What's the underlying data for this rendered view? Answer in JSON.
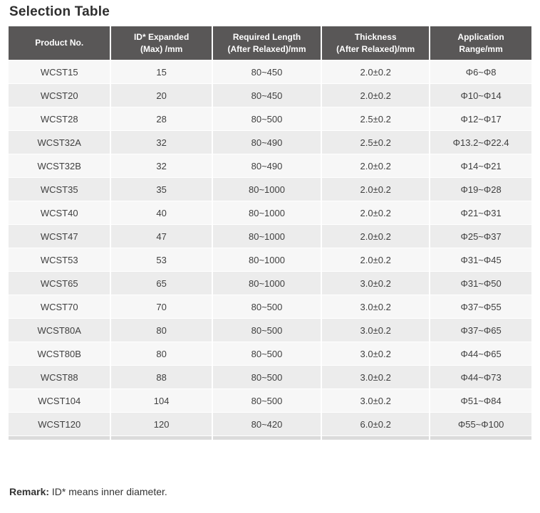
{
  "page": {
    "title": "Selection Table"
  },
  "table": {
    "columns": [
      {
        "key": "product-no",
        "label": "Product No."
      },
      {
        "key": "id-expanded",
        "label": "ID* Expanded\n(Max) /mm"
      },
      {
        "key": "required-length",
        "label": "Required Length\n(After Relaxed)/mm"
      },
      {
        "key": "thickness",
        "label": "Thickness\n(After Relaxed)/mm"
      },
      {
        "key": "application-range",
        "label": "Application\nRange/mm"
      }
    ],
    "rows": [
      [
        "WCST15",
        "15",
        "80~450",
        "2.0±0.2",
        "Φ6~Φ8"
      ],
      [
        "WCST20",
        "20",
        "80~450",
        "2.0±0.2",
        "Φ10~Φ14"
      ],
      [
        "WCST28",
        "28",
        "80~500",
        "2.5±0.2",
        "Φ12~Φ17"
      ],
      [
        "WCST32A",
        "32",
        "80~490",
        "2.5±0.2",
        "Φ13.2~Φ22.4"
      ],
      [
        "WCST32B",
        "32",
        "80~490",
        "2.0±0.2",
        "Φ14~Φ21"
      ],
      [
        "WCST35",
        "35",
        "80~1000",
        "2.0±0.2",
        "Φ19~Φ28"
      ],
      [
        "WCST40",
        "40",
        "80~1000",
        "2.0±0.2",
        "Φ21~Φ31"
      ],
      [
        "WCST47",
        "47",
        "80~1000",
        "2.0±0.2",
        "Φ25~Φ37"
      ],
      [
        "WCST53",
        "53",
        "80~1000",
        "2.0±0.2",
        "Φ31~Φ45"
      ],
      [
        "WCST65",
        "65",
        "80~1000",
        "3.0±0.2",
        "Φ31~Φ50"
      ],
      [
        "WCST70",
        "70",
        "80~500",
        "3.0±0.2",
        "Φ37~Φ55"
      ],
      [
        "WCST80A",
        "80",
        "80~500",
        "3.0±0.2",
        "Φ37~Φ65"
      ],
      [
        "WCST80B",
        "80",
        "80~500",
        "3.0±0.2",
        "Φ44~Φ65"
      ],
      [
        "WCST88",
        "88",
        "80~500",
        "3.0±0.2",
        "Φ44~Φ73"
      ],
      [
        "WCST104",
        "104",
        "80~500",
        "3.0±0.2",
        "Φ51~Φ84"
      ],
      [
        "WCST120",
        "120",
        "80~420",
        "6.0±0.2",
        "Φ55~Φ100"
      ]
    ]
  },
  "remark": {
    "label": "Remark:",
    "text": " ID* means inner diameter."
  },
  "colors": {
    "header_bg": "#595757",
    "header_text": "#ffffff",
    "row_light": "#f7f7f7",
    "row_dark": "#ececec",
    "strip": "#dbdbdb",
    "body_text": "#3f3f3f",
    "title_text": "#2e2e2e",
    "remark_text": "#333333"
  }
}
